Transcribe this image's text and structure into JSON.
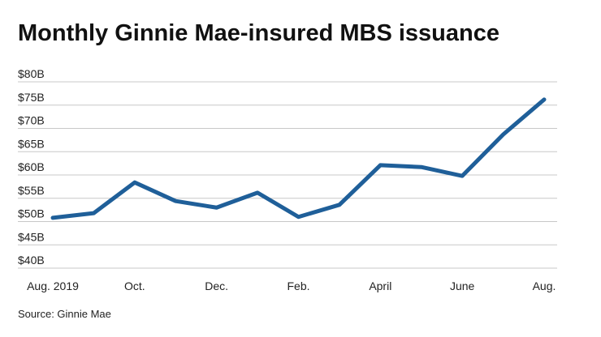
{
  "chart_data": {
    "type": "line",
    "title": "Monthly Ginnie Mae-insured MBS issuance",
    "source": "Source: Ginnie Mae",
    "categories": [
      "Aug. 2019",
      null,
      "Oct.",
      null,
      "Dec.",
      null,
      "Feb.",
      null,
      "April",
      null,
      "June",
      null,
      "Aug."
    ],
    "series": [
      {
        "name": "MBS issuance",
        "color": "#1f5f99",
        "values": [
          50.8,
          51.8,
          58.4,
          54.4,
          53.0,
          56.2,
          51.0,
          53.6,
          62.1,
          61.7,
          59.8,
          68.7,
          76.2
        ]
      }
    ],
    "ylim": [
      40,
      80
    ],
    "yticks": [
      {
        "value": 40,
        "label": "$40B"
      },
      {
        "value": 45,
        "label": "$45B"
      },
      {
        "value": 50,
        "label": "$50B"
      },
      {
        "value": 55,
        "label": "$55B"
      },
      {
        "value": 60,
        "label": "$60B"
      },
      {
        "value": 65,
        "label": "$65B"
      },
      {
        "value": 70,
        "label": "$70B"
      },
      {
        "value": 75,
        "label": "$75B"
      },
      {
        "value": 80,
        "label": "$80B"
      }
    ],
    "grid": true
  }
}
